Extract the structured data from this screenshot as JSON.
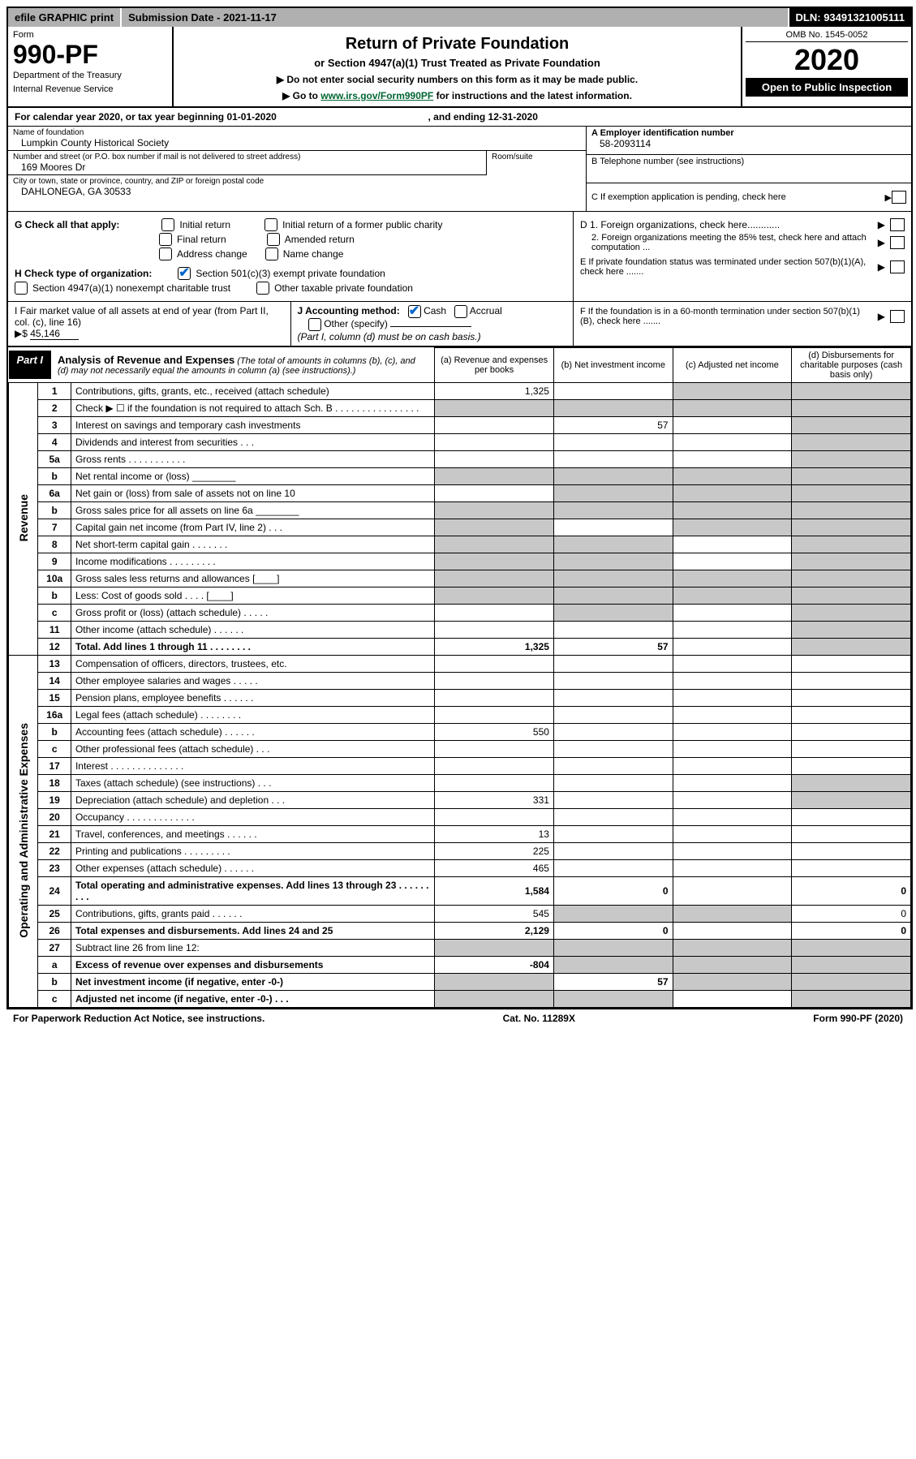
{
  "top": {
    "efile": "efile GRAPHIC print",
    "submission": "Submission Date - 2021-11-17",
    "dln": "DLN: 93491321005111"
  },
  "header": {
    "form_label": "Form",
    "form_no": "990-PF",
    "dept1": "Department of the Treasury",
    "dept2": "Internal Revenue Service",
    "title": "Return of Private Foundation",
    "subtitle": "or Section 4947(a)(1) Trust Treated as Private Foundation",
    "notice1": "▶ Do not enter social security numbers on this form as it may be made public.",
    "notice2_pre": "▶ Go to ",
    "notice2_link": "www.irs.gov/Form990PF",
    "notice2_post": " for instructions and the latest information.",
    "omb": "OMB No. 1545-0052",
    "year": "2020",
    "open": "Open to Public Inspection"
  },
  "cal": {
    "text_pre": "For calendar year 2020, or tax year beginning 01-01-2020",
    "text_mid": ", and ending 12-31-2020"
  },
  "info": {
    "name_label": "Name of foundation",
    "name": "Lumpkin County Historical Society",
    "addr_label": "Number and street (or P.O. box number if mail is not delivered to street address)",
    "addr": "169 Moores Dr",
    "room_label": "Room/suite",
    "city_label": "City or town, state or province, country, and ZIP or foreign postal code",
    "city": "DAHLONEGA, GA  30533",
    "a_label": "A Employer identification number",
    "a_val": "58-2093114",
    "b_label": "B Telephone number (see instructions)",
    "c_label": "C If exemption application is pending, check here",
    "c_arrow": "▶"
  },
  "g": {
    "label": "G Check all that apply:",
    "opts": [
      "Initial return",
      "Final return",
      "Address change",
      "Initial return of a former public charity",
      "Amended return",
      "Name change"
    ]
  },
  "h": {
    "label": "H Check type of organization:",
    "opt1": "Section 501(c)(3) exempt private foundation",
    "opt2": "Section 4947(a)(1) nonexempt charitable trust",
    "opt3": "Other taxable private foundation"
  },
  "d": {
    "d1": "D 1. Foreign organizations, check here............",
    "d2": "2. Foreign organizations meeting the 85% test, check here and attach computation ...",
    "e": "E   If private foundation status was terminated under section 507(b)(1)(A), check here .......",
    "f": "F   If the foundation is in a 60-month termination under section 507(b)(1)(B), check here .......",
    "arrow": "▶"
  },
  "i": {
    "label": "I Fair market value of all assets at end of year (from Part II, col. (c), line 16)",
    "arrow": "▶$",
    "val": "45,146"
  },
  "j": {
    "label": "J Accounting method:",
    "cash": "Cash",
    "accrual": "Accrual",
    "other": "Other (specify)",
    "note": "(Part I, column (d) must be on cash basis.)"
  },
  "part1": {
    "label": "Part I",
    "title": "Analysis of Revenue and Expenses",
    "note": "(The total of amounts in columns (b), (c), and (d) may not necessarily equal the amounts in column (a) (see instructions).)",
    "col_a": "(a)   Revenue and expenses per books",
    "col_b": "(b)   Net investment income",
    "col_c": "(c)   Adjusted net income",
    "col_d": "(d)   Disbursements for charitable purposes (cash basis only)"
  },
  "sections": {
    "revenue": "Revenue",
    "opex": "Operating and Administrative Expenses"
  },
  "rows": [
    {
      "n": "1",
      "d": "Contributions, gifts, grants, etc., received (attach schedule)",
      "a": "1,325",
      "b": "",
      "c_shade": true,
      "d_shade": true
    },
    {
      "n": "2",
      "d": "Check ▶ ☐ if the foundation is not required to attach Sch. B   .   .   .   .   .   .   .   .   .   .   .   .   .   .   .   .",
      "a_shade": true,
      "b_shade": true,
      "c_shade": true,
      "d_shade": true
    },
    {
      "n": "3",
      "d": "Interest on savings and temporary cash investments",
      "a": "",
      "b": "57",
      "c": "",
      "d_shade": true
    },
    {
      "n": "4",
      "d": "Dividends and interest from securities   .   .   .",
      "a": "",
      "b": "",
      "c": "",
      "d_shade": true
    },
    {
      "n": "5a",
      "d": "Gross rents   .   .   .   .   .   .   .   .   .   .   .",
      "a": "",
      "b": "",
      "c": "",
      "d_shade": true
    },
    {
      "n": "b",
      "d": "Net rental income or (loss)  ________",
      "a_shade": true,
      "b_shade": true,
      "c_shade": true,
      "d_shade": true
    },
    {
      "n": "6a",
      "d": "Net gain or (loss) from sale of assets not on line 10",
      "a": "",
      "b_shade": true,
      "c_shade": true,
      "d_shade": true
    },
    {
      "n": "b",
      "d": "Gross sales price for all assets on line 6a ________",
      "a_shade": true,
      "b_shade": true,
      "c_shade": true,
      "d_shade": true
    },
    {
      "n": "7",
      "d": "Capital gain net income (from Part IV, line 2)   .   .   .",
      "a_shade": true,
      "b": "",
      "c_shade": true,
      "d_shade": true
    },
    {
      "n": "8",
      "d": "Net short-term capital gain   .   .   .   .   .   .   .",
      "a_shade": true,
      "b_shade": true,
      "c": "",
      "d_shade": true
    },
    {
      "n": "9",
      "d": "Income modifications   .   .   .   .   .   .   .   .   .",
      "a_shade": true,
      "b_shade": true,
      "c": "",
      "d_shade": true
    },
    {
      "n": "10a",
      "d": "Gross sales less returns and allowances  [____]",
      "a_shade": true,
      "b_shade": true,
      "c_shade": true,
      "d_shade": true
    },
    {
      "n": "b",
      "d": "Less: Cost of goods sold   .   .   .   .   [____]",
      "a_shade": true,
      "b_shade": true,
      "c_shade": true,
      "d_shade": true
    },
    {
      "n": "c",
      "d": "Gross profit or (loss) (attach schedule)   .   .   .   .   .",
      "a": "",
      "b_shade": true,
      "c": "",
      "d_shade": true
    },
    {
      "n": "11",
      "d": "Other income (attach schedule)   .   .   .   .   .   .",
      "a": "",
      "b": "",
      "c": "",
      "d_shade": true
    },
    {
      "n": "12",
      "d": "Total. Add lines 1 through 11   .   .   .   .   .   .   .   .",
      "bold": true,
      "a": "1,325",
      "b": "57",
      "c": "",
      "d_shade": true
    }
  ],
  "rows_opex": [
    {
      "n": "13",
      "d": "Compensation of officers, directors, trustees, etc.",
      "a": "",
      "b": "",
      "c": "",
      "dd": ""
    },
    {
      "n": "14",
      "d": "Other employee salaries and wages   .   .   .   .   .",
      "a": "",
      "b": "",
      "c": "",
      "dd": ""
    },
    {
      "n": "15",
      "d": "Pension plans, employee benefits   .   .   .   .   .   .",
      "a": "",
      "b": "",
      "c": "",
      "dd": ""
    },
    {
      "n": "16a",
      "d": "Legal fees (attach schedule)   .   .   .   .   .   .   .   .",
      "a": "",
      "b": "",
      "c": "",
      "dd": ""
    },
    {
      "n": "b",
      "d": "Accounting fees (attach schedule)   .   .   .   .   .   .",
      "a": "550",
      "b": "",
      "c": "",
      "dd": ""
    },
    {
      "n": "c",
      "d": "Other professional fees (attach schedule)   .   .   .",
      "a": "",
      "b": "",
      "c": "",
      "dd": ""
    },
    {
      "n": "17",
      "d": "Interest   .   .   .   .   .   .   .   .   .   .   .   .   .   .",
      "a": "",
      "b": "",
      "c": "",
      "dd": ""
    },
    {
      "n": "18",
      "d": "Taxes (attach schedule) (see instructions)   .   .   .",
      "a": "",
      "b": "",
      "c": "",
      "d_shade": true
    },
    {
      "n": "19",
      "d": "Depreciation (attach schedule) and depletion   .   .   .",
      "a": "331",
      "b": "",
      "c": "",
      "d_shade": true
    },
    {
      "n": "20",
      "d": "Occupancy   .   .   .   .   .   .   .   .   .   .   .   .   .",
      "a": "",
      "b": "",
      "c": "",
      "dd": ""
    },
    {
      "n": "21",
      "d": "Travel, conferences, and meetings   .   .   .   .   .   .",
      "a": "13",
      "b": "",
      "c": "",
      "dd": ""
    },
    {
      "n": "22",
      "d": "Printing and publications   .   .   .   .   .   .   .   .   .",
      "a": "225",
      "b": "",
      "c": "",
      "dd": ""
    },
    {
      "n": "23",
      "d": "Other expenses (attach schedule)   .   .   .   .   .   .",
      "a": "465",
      "b": "",
      "c": "",
      "dd": ""
    },
    {
      "n": "24",
      "d": "Total operating and administrative expenses. Add lines 13 through 23   .   .   .   .   .   .   .   .   .",
      "bold": true,
      "a": "1,584",
      "b": "0",
      "c": "",
      "dd": "0"
    },
    {
      "n": "25",
      "d": "Contributions, gifts, grants paid   .   .   .   .   .   .",
      "a": "545",
      "b_shade": true,
      "c_shade": true,
      "dd": "0"
    },
    {
      "n": "26",
      "d": "Total expenses and disbursements. Add lines 24 and 25",
      "bold": true,
      "a": "2,129",
      "b": "0",
      "c": "",
      "dd": "0"
    }
  ],
  "rows_bottom": [
    {
      "n": "27",
      "d": "Subtract line 26 from line 12:",
      "a_shade": true,
      "b_shade": true,
      "c_shade": true,
      "d_shade": true
    },
    {
      "n": "a",
      "d": "Excess of revenue over expenses and disbursements",
      "bold": true,
      "a": "-804",
      "b_shade": true,
      "c_shade": true,
      "d_shade": true
    },
    {
      "n": "b",
      "d": "Net investment income (if negative, enter -0-)",
      "bold": true,
      "a_shade": true,
      "b": "57",
      "c_shade": true,
      "d_shade": true
    },
    {
      "n": "c",
      "d": "Adjusted net income (if negative, enter -0-)   .   .   .",
      "bold": true,
      "a_shade": true,
      "b_shade": true,
      "c": "",
      "d_shade": true
    }
  ],
  "footer": {
    "left": "For Paperwork Reduction Act Notice, see instructions.",
    "mid": "Cat. No. 11289X",
    "right": "Form 990-PF (2020)"
  }
}
